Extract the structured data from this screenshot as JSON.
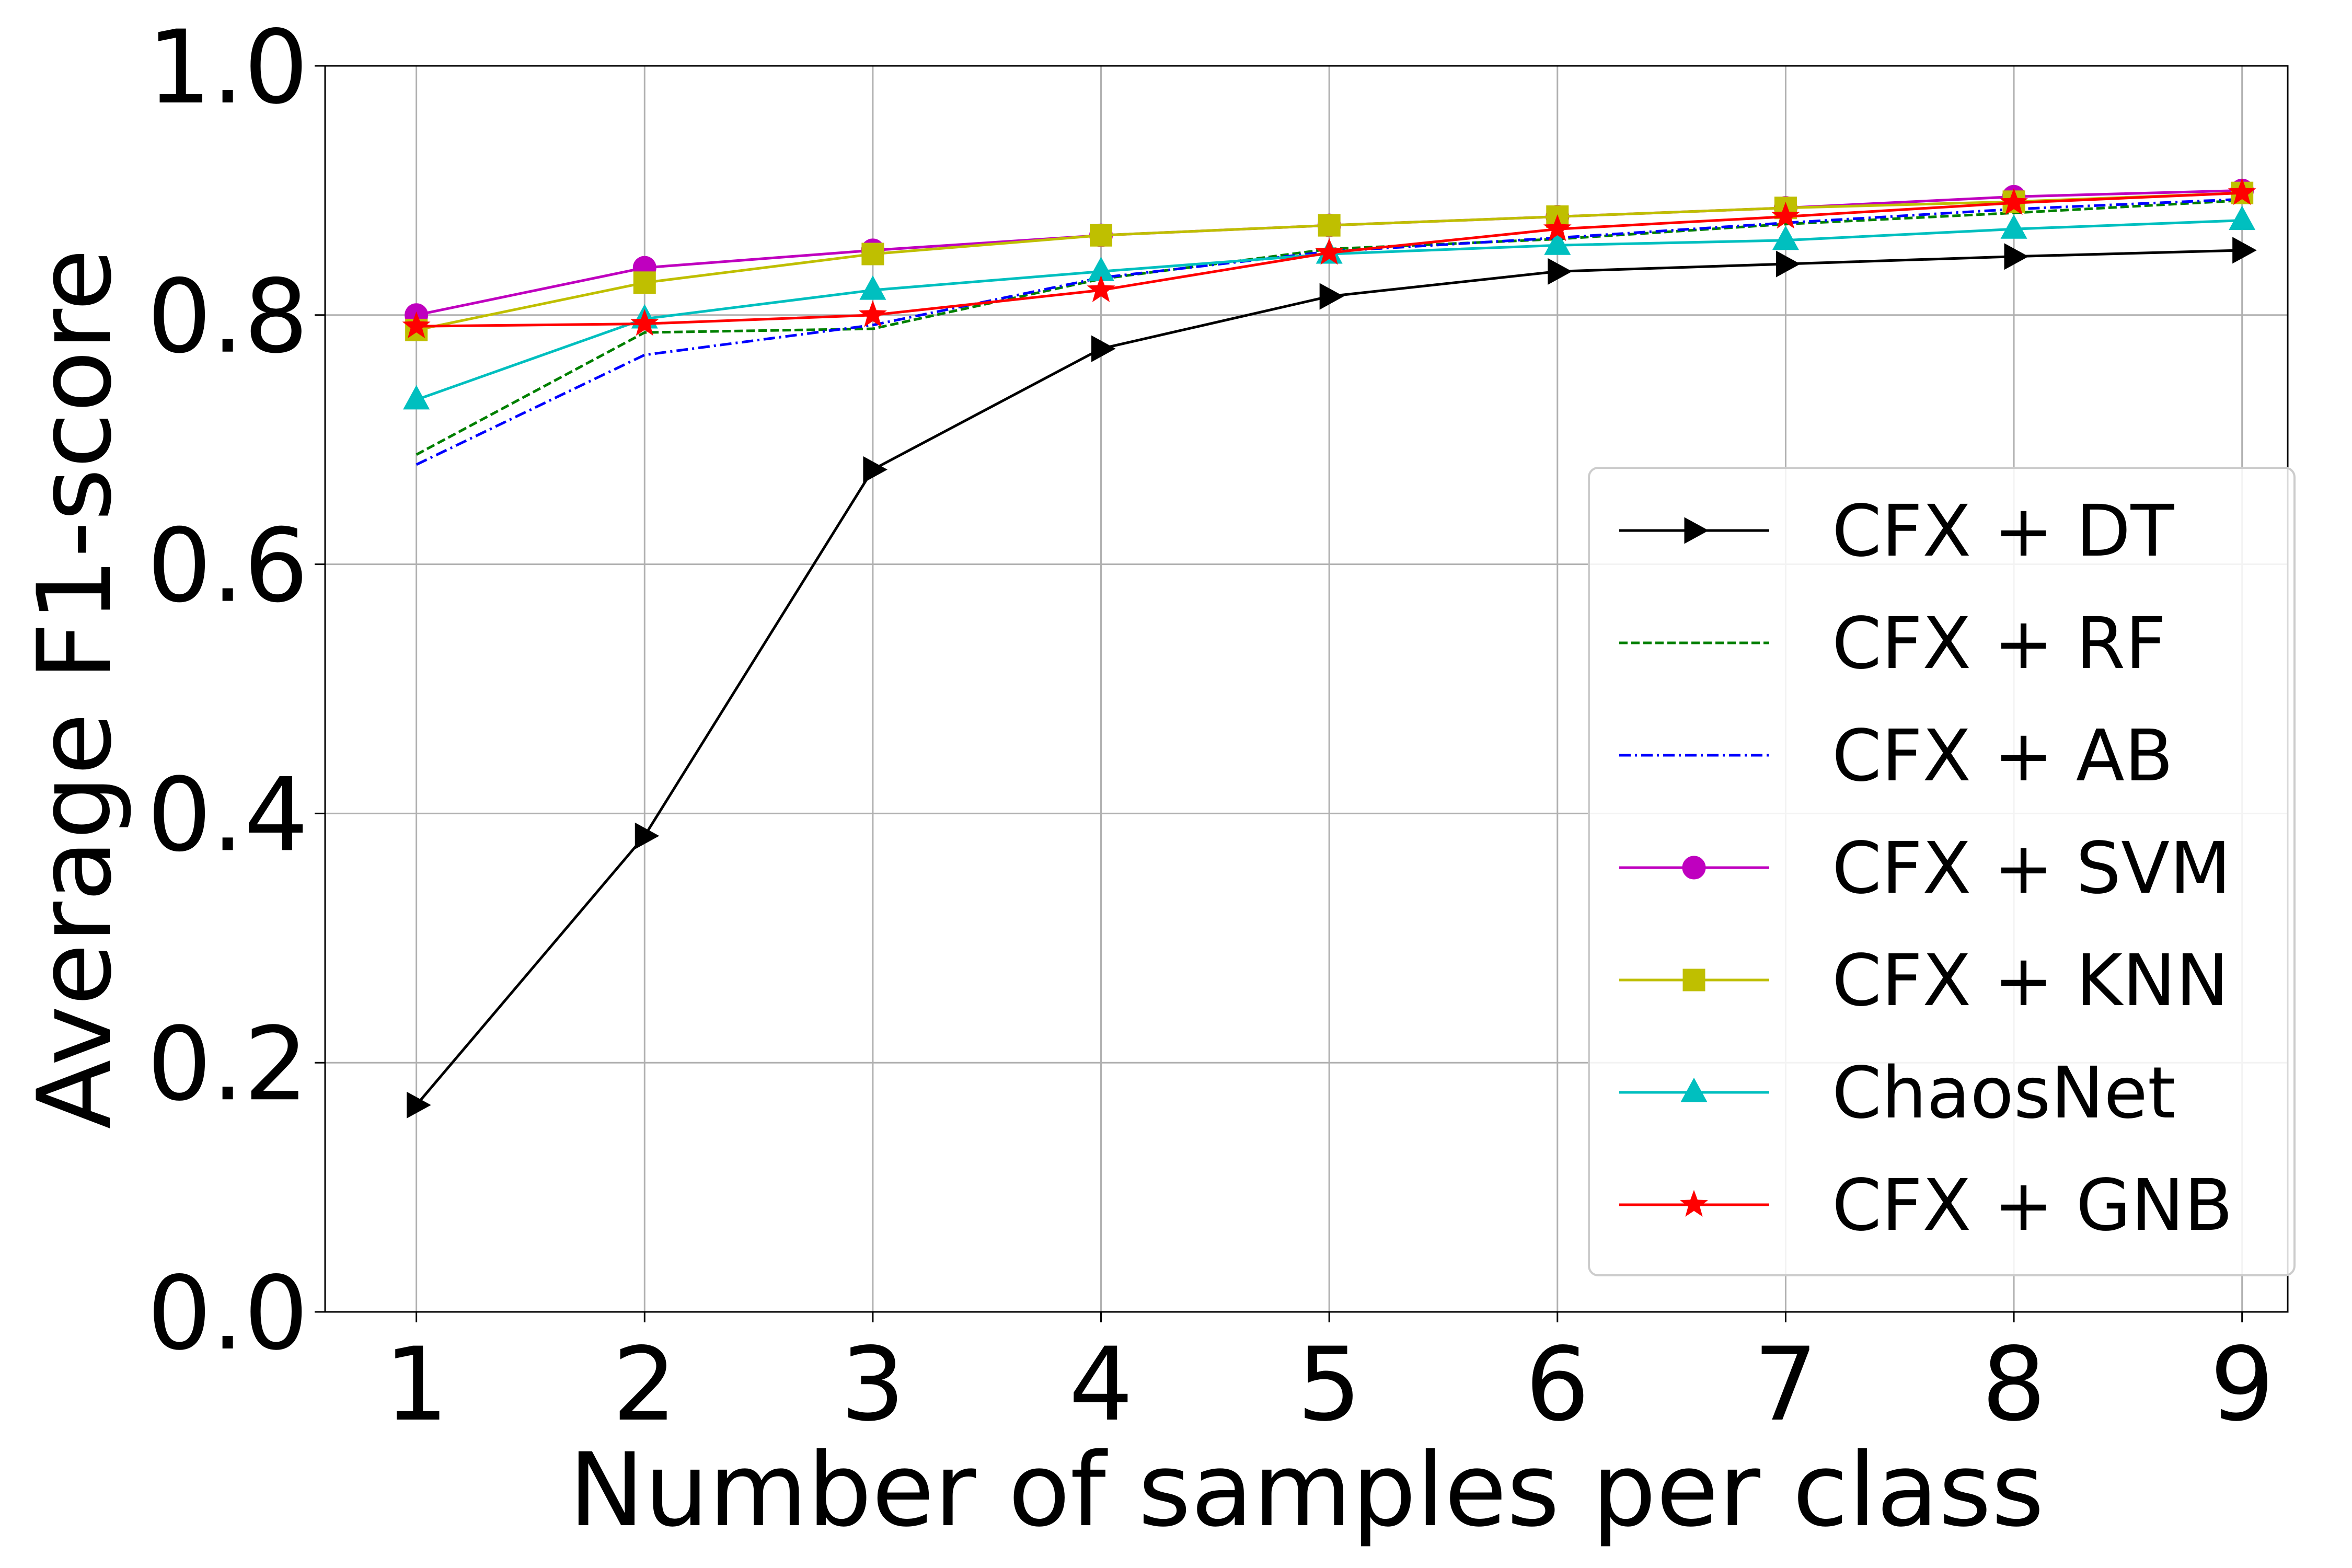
{
  "chart_data": {
    "type": "line",
    "title": "",
    "xlabel": "Number of samples per class",
    "ylabel": "Average F1-score",
    "x": [
      1,
      2,
      3,
      4,
      5,
      6,
      7,
      8,
      9
    ],
    "xticks": [
      "1",
      "2",
      "3",
      "4",
      "5",
      "6",
      "7",
      "8",
      "9"
    ],
    "xlim": [
      0.6,
      9.2
    ],
    "ylim": [
      0.0,
      1.0
    ],
    "yticks": [
      "0.0",
      "0.2",
      "0.4",
      "0.6",
      "0.8",
      "1.0"
    ],
    "grid": true,
    "legend_position": "lower-right",
    "series": [
      {
        "name": "CFX + DT",
        "color": "#000000",
        "dash": "solid",
        "marker": "triangle-right",
        "values": [
          0.166,
          0.382,
          0.676,
          0.773,
          0.815,
          0.835,
          0.841,
          0.847,
          0.852
        ]
      },
      {
        "name": "CFX + RF",
        "color": "#008000",
        "dash": "dashed",
        "marker": "none",
        "values": [
          0.688,
          0.786,
          0.789,
          0.829,
          0.853,
          0.861,
          0.873,
          0.882,
          0.892
        ]
      },
      {
        "name": "CFX + AB",
        "color": "#0000ff",
        "dash": "dashdot",
        "marker": "none",
        "values": [
          0.68,
          0.768,
          0.792,
          0.83,
          0.851,
          0.862,
          0.874,
          0.885,
          0.893
        ]
      },
      {
        "name": "CFX + SVM",
        "color": "#bf00bf",
        "dash": "solid",
        "marker": "circle",
        "values": [
          0.8,
          0.838,
          0.852,
          0.864,
          0.872,
          0.879,
          0.886,
          0.895,
          0.9
        ]
      },
      {
        "name": "CFX + KNN",
        "color": "#bfbf00",
        "dash": "solid",
        "marker": "square",
        "values": [
          0.788,
          0.826,
          0.849,
          0.864,
          0.872,
          0.879,
          0.886,
          0.891,
          0.898
        ]
      },
      {
        "name": "ChaosNet",
        "color": "#00bfbf",
        "dash": "solid",
        "marker": "triangle-up",
        "values": [
          0.732,
          0.797,
          0.82,
          0.835,
          0.849,
          0.856,
          0.86,
          0.869,
          0.876
        ]
      },
      {
        "name": "CFX + GNB",
        "color": "#ff0000",
        "dash": "solid",
        "marker": "star",
        "values": [
          0.791,
          0.793,
          0.8,
          0.82,
          0.85,
          0.869,
          0.879,
          0.89,
          0.898
        ]
      }
    ]
  }
}
